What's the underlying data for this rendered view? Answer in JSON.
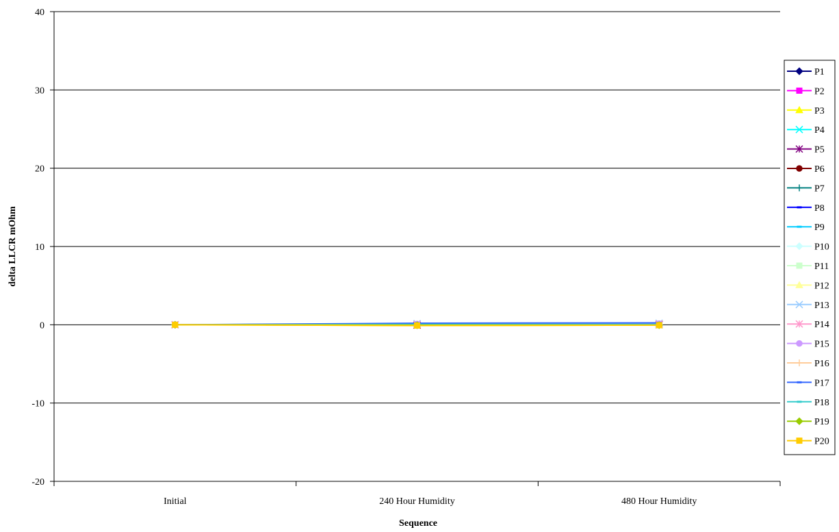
{
  "chart_data": {
    "type": "line",
    "title": "",
    "xlabel": "Sequence",
    "ylabel": "delta LLCR mOhm",
    "categories": [
      "Initial",
      "240 Hour Humidity",
      "480 Hour Humidity"
    ],
    "ylim": [
      -20,
      40
    ],
    "yticks": [
      -20,
      -10,
      0,
      10,
      20,
      30,
      40
    ],
    "grid": true,
    "legend_position": "right",
    "series": [
      {
        "name": "P1",
        "color": "#000080",
        "marker": "diamond",
        "values": [
          0,
          -0.05,
          0.0
        ]
      },
      {
        "name": "P2",
        "color": "#FF00FF",
        "marker": "square",
        "values": [
          0,
          0.05,
          0.1
        ]
      },
      {
        "name": "P3",
        "color": "#FFFF00",
        "marker": "triangle",
        "values": [
          0,
          -0.1,
          -0.05
        ]
      },
      {
        "name": "P4",
        "color": "#00FFFF",
        "marker": "x",
        "values": [
          0,
          0.1,
          0.1
        ]
      },
      {
        "name": "P5",
        "color": "#800080",
        "marker": "star",
        "values": [
          0,
          -0.05,
          0.0
        ]
      },
      {
        "name": "P6",
        "color": "#800000",
        "marker": "circle",
        "values": [
          0,
          0.0,
          0.05
        ]
      },
      {
        "name": "P7",
        "color": "#008080",
        "marker": "plus",
        "values": [
          0,
          0.05,
          0.0
        ]
      },
      {
        "name": "P8",
        "color": "#0000FF",
        "marker": "dash",
        "values": [
          0,
          -0.05,
          -0.05
        ]
      },
      {
        "name": "P9",
        "color": "#00CCFF",
        "marker": "dash",
        "values": [
          0,
          0.1,
          0.15
        ]
      },
      {
        "name": "P10",
        "color": "#CCFFFF",
        "marker": "diamond",
        "values": [
          0,
          0.0,
          0.05
        ]
      },
      {
        "name": "P11",
        "color": "#CCFFCC",
        "marker": "square",
        "values": [
          0,
          -0.05,
          0.0
        ]
      },
      {
        "name": "P12",
        "color": "#FFFF99",
        "marker": "triangle",
        "values": [
          0,
          0.0,
          -0.05
        ]
      },
      {
        "name": "P13",
        "color": "#99CCFF",
        "marker": "x",
        "values": [
          0,
          0.15,
          0.2
        ]
      },
      {
        "name": "P14",
        "color": "#FF99CC",
        "marker": "star",
        "values": [
          0,
          0.05,
          0.1
        ]
      },
      {
        "name": "P15",
        "color": "#CC99FF",
        "marker": "circle",
        "values": [
          0,
          0.1,
          0.15
        ]
      },
      {
        "name": "P16",
        "color": "#FFCC99",
        "marker": "plus",
        "values": [
          0,
          -0.05,
          0.0
        ]
      },
      {
        "name": "P17",
        "color": "#3366FF",
        "marker": "dash",
        "values": [
          0,
          0.2,
          0.25
        ]
      },
      {
        "name": "P18",
        "color": "#33CCCC",
        "marker": "dash",
        "values": [
          0,
          0.05,
          0.05
        ]
      },
      {
        "name": "P19",
        "color": "#99CC00",
        "marker": "diamond",
        "values": [
          0,
          -0.05,
          -0.05
        ]
      },
      {
        "name": "P20",
        "color": "#FFCC00",
        "marker": "square",
        "values": [
          0,
          -0.1,
          -0.05
        ]
      }
    ]
  }
}
